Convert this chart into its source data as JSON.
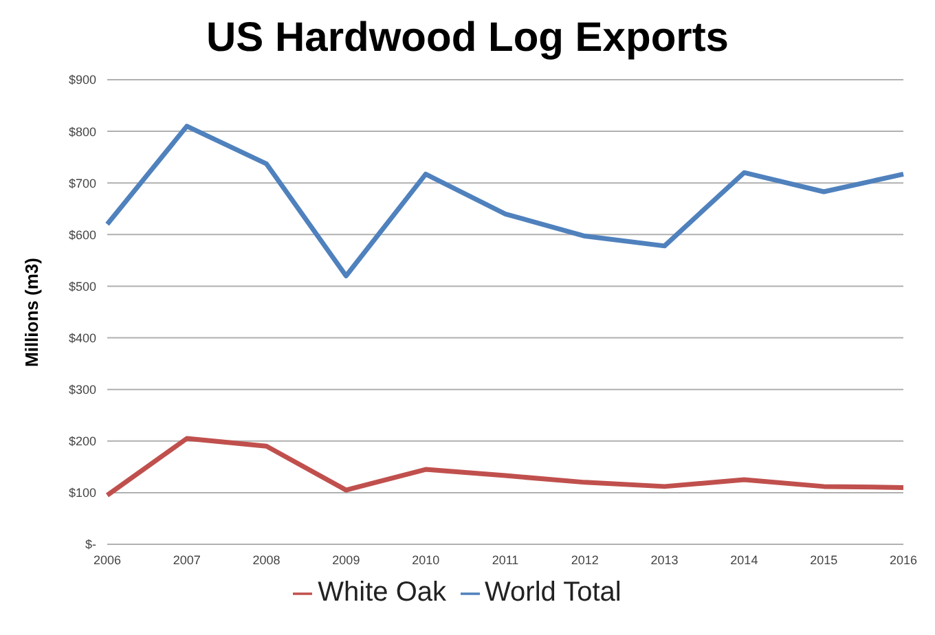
{
  "chart_data": {
    "type": "line",
    "title": "US Hardwood Log Exports",
    "ylabel": "Millions (m3)",
    "categories": [
      "2006",
      "2007",
      "2008",
      "2009",
      "2010",
      "2011",
      "2012",
      "2013",
      "2014",
      "2015",
      "2016"
    ],
    "series": [
      {
        "name": "World Total",
        "color": "#4f81bd",
        "values": [
          620,
          810,
          737,
          520,
          717,
          640,
          597,
          578,
          720,
          683,
          717
        ]
      },
      {
        "name": "White Oak",
        "color": "#c0504d",
        "values": [
          95,
          205,
          190,
          105,
          145,
          133,
          120,
          112,
          125,
          112,
          110
        ]
      }
    ],
    "ylim": [
      0,
      900
    ],
    "yticks": [
      {
        "value": 0,
        "label": "$-"
      },
      {
        "value": 100,
        "label": "$100"
      },
      {
        "value": 200,
        "label": "$200"
      },
      {
        "value": 300,
        "label": "$300"
      },
      {
        "value": 400,
        "label": "$400"
      },
      {
        "value": 500,
        "label": "$500"
      },
      {
        "value": 600,
        "label": "$600"
      },
      {
        "value": 700,
        "label": "$700"
      },
      {
        "value": 800,
        "label": "$800"
      },
      {
        "value": 900,
        "label": "$900"
      }
    ],
    "grid": "y",
    "legend": "bottom",
    "marker": "none",
    "line_style": "solid"
  }
}
